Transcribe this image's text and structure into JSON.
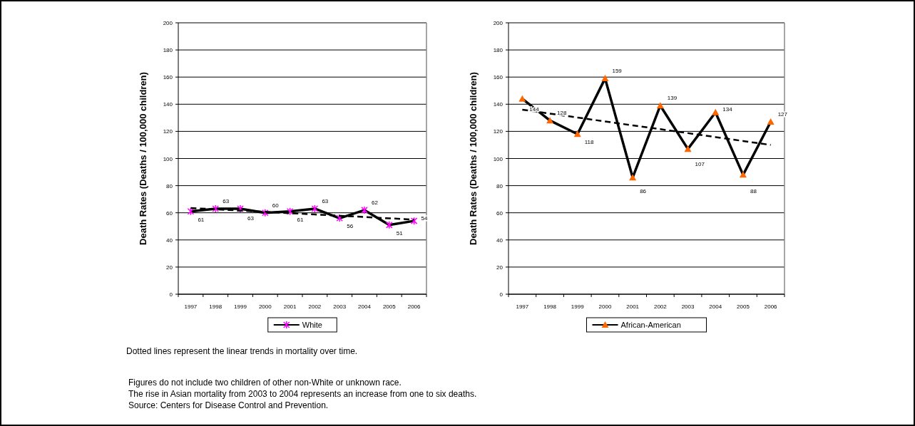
{
  "chart_data": [
    {
      "type": "line",
      "categories": [
        "1997",
        "1998",
        "1999",
        "2000",
        "2001",
        "2002",
        "2003",
        "2004",
        "2005",
        "2006"
      ],
      "ylabel": "Death Rates (Deaths / 100,000 children)",
      "ylim": [
        0,
        200
      ],
      "yticks": [
        0,
        20,
        40,
        60,
        80,
        100,
        120,
        140,
        160,
        180,
        200
      ],
      "grid": "y",
      "legend": "bottom",
      "series": [
        {
          "name": "White",
          "color": "#ff00ff",
          "marker": "cross",
          "line_style": "solid",
          "data_labels": true,
          "values": [
            61,
            63,
            63,
            60,
            61,
            63,
            56,
            62,
            51,
            54
          ]
        },
        {
          "type": "line",
          "color": "#000000",
          "marker": "none",
          "line_style": "dashed",
          "values": [
            63.5,
            62.6,
            61.6,
            60.7,
            59.7,
            58.8,
            57.8,
            56.9,
            55.9,
            55
          ]
        }
      ],
      "annotations": [
        "Dotted lines represent the linear trends in mortality over time.",
        "Figures do not include two children of other non-White or unknown race.",
        "The rise in Asian mortality from 2003 to 2004 represents an increase from one to six deaths.",
        "Source: Centers for Disease Control and Prevention."
      ]
    },
    {
      "type": "line",
      "categories": [
        "1997",
        "1998",
        "1999",
        "2000",
        "2001",
        "2002",
        "2003",
        "2004",
        "2005",
        "2006"
      ],
      "ylabel": "Death Rates (Deaths / 100,000 children)",
      "ylim": [
        0,
        200
      ],
      "yticks": [
        0,
        20,
        40,
        60,
        80,
        100,
        120,
        140,
        160,
        180,
        200
      ],
      "grid": "y",
      "legend": "bottom",
      "series": [
        {
          "name": "African-American",
          "color": "#ff6600",
          "marker": "triangle",
          "line_style": "solid",
          "data_labels": true,
          "values": [
            144,
            128,
            118,
            159,
            86,
            139,
            107,
            134,
            88,
            127
          ]
        },
        {
          "type": "line",
          "color": "#000000",
          "marker": "none",
          "line_style": "dashed",
          "values": [
            136,
            133.1,
            130.2,
            127.3,
            124.4,
            121.6,
            118.7,
            115.8,
            112.9,
            110
          ]
        }
      ]
    }
  ]
}
